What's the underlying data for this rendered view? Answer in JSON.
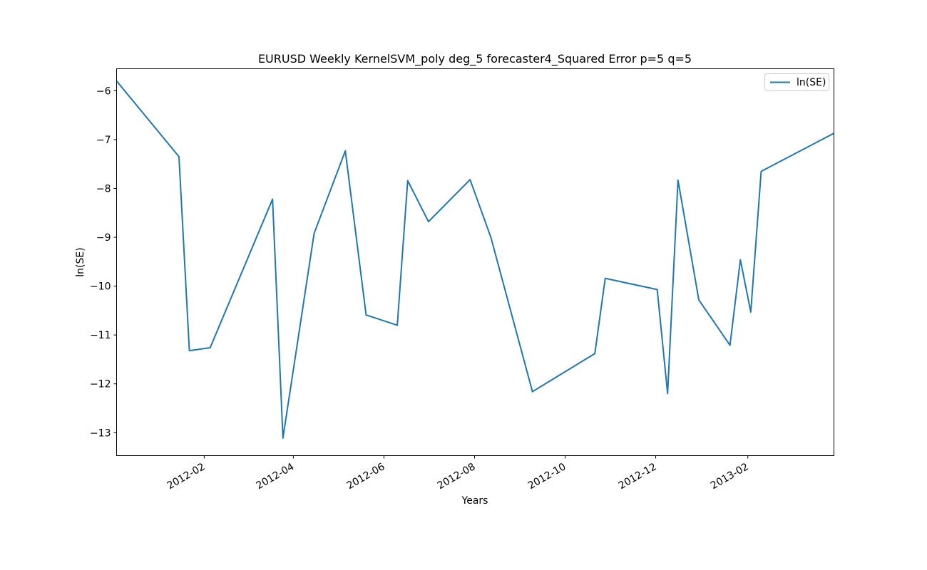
{
  "chart_data": {
    "type": "line",
    "title": "EURUSD Weekly KernelSVM_poly deg_5 forecaster4_Squared Error p=5 q=5",
    "xlabel": "Years",
    "ylabel": "ln(SE)",
    "xlim": [
      "2011-12-04",
      "2013-03-31"
    ],
    "ylim": [
      -13.47,
      -5.55
    ],
    "yticks": [
      -13,
      -12,
      -11,
      -10,
      -9,
      -8,
      -7,
      -6
    ],
    "xticks": [
      {
        "date": "2012-02-01",
        "label": "2012-02"
      },
      {
        "date": "2012-04-01",
        "label": "2012-04"
      },
      {
        "date": "2012-06-01",
        "label": "2012-06"
      },
      {
        "date": "2012-08-01",
        "label": "2012-08"
      },
      {
        "date": "2012-10-01",
        "label": "2012-10"
      },
      {
        "date": "2012-12-01",
        "label": "2012-12"
      },
      {
        "date": "2013-02-01",
        "label": "2013-02"
      }
    ],
    "legend": {
      "position": "top-right"
    },
    "grid": false,
    "series": [
      {
        "name": "ln(SE)",
        "color": "#1f77b4",
        "x": [
          "2011-12-04",
          "2012-01-15",
          "2012-01-22",
          "2012-02-05",
          "2012-03-18",
          "2012-03-25",
          "2012-04-15",
          "2012-05-06",
          "2012-05-20",
          "2012-06-10",
          "2012-06-17",
          "2012-07-01",
          "2012-07-29",
          "2012-08-12",
          "2012-09-09",
          "2012-10-21",
          "2012-10-28",
          "2012-12-02",
          "2012-12-09",
          "2012-12-16",
          "2012-12-30",
          "2013-01-20",
          "2013-01-27",
          "2013-02-03",
          "2013-02-10",
          "2013-03-31"
        ],
        "y": [
          -5.8,
          -7.35,
          -11.32,
          -11.26,
          -8.22,
          -13.11,
          -8.92,
          -7.23,
          -10.59,
          -10.8,
          -7.84,
          -8.68,
          -7.82,
          -9.0,
          -12.16,
          -11.38,
          -9.84,
          -10.07,
          -12.2,
          -7.83,
          -10.28,
          -11.21,
          -9.46,
          -10.53,
          -7.65,
          -6.87
        ]
      }
    ]
  }
}
